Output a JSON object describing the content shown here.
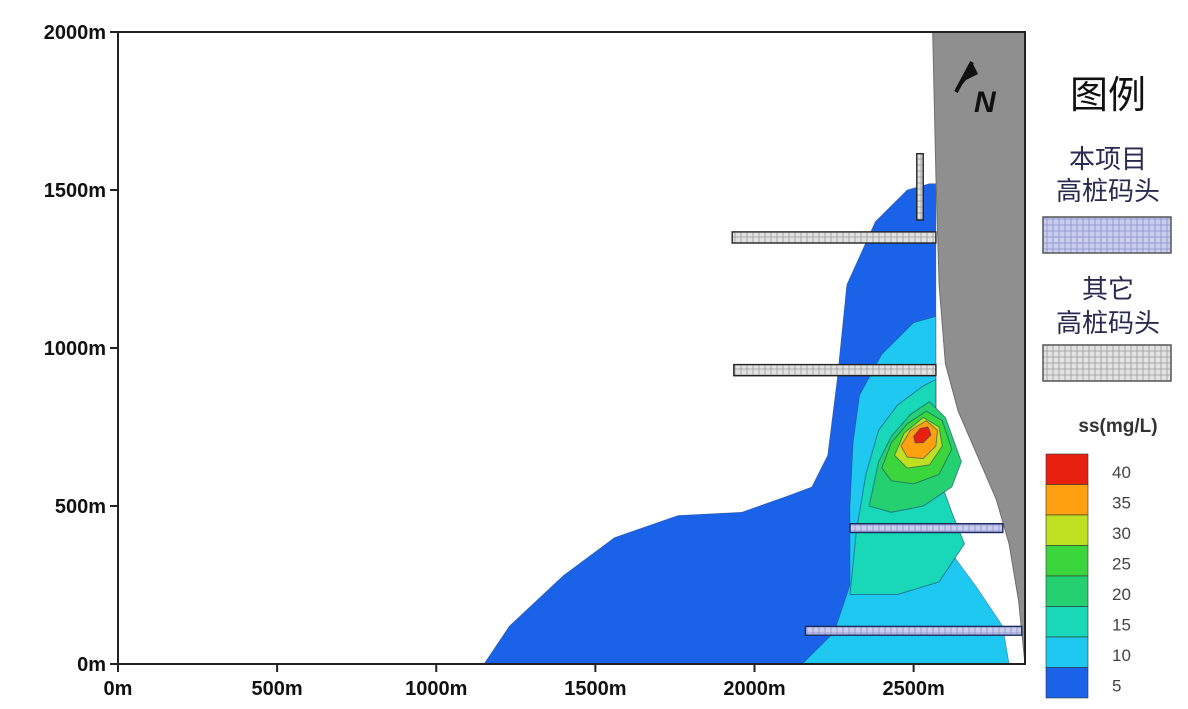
{
  "chart_data": {
    "type": "heatmap",
    "title": "",
    "xlabel": "",
    "ylabel": "",
    "xlim": [
      0,
      2850
    ],
    "ylim": [
      0,
      2000
    ],
    "x_ticks": [
      {
        "value": 0,
        "label": "0m"
      },
      {
        "value": 500,
        "label": "500m"
      },
      {
        "value": 1000,
        "label": "1000m"
      },
      {
        "value": 1500,
        "label": "1500m"
      },
      {
        "value": 2000,
        "label": "2000m"
      },
      {
        "value": 2500,
        "label": "2500m"
      }
    ],
    "y_ticks": [
      {
        "value": 0,
        "label": "0m"
      },
      {
        "value": 500,
        "label": "500m"
      },
      {
        "value": 1000,
        "label": "1000m"
      },
      {
        "value": 1500,
        "label": "1500m"
      },
      {
        "value": 2000,
        "label": "2000m"
      }
    ],
    "north_arrow": "N",
    "legend": {
      "placement": "right",
      "title": "图例",
      "items": [
        {
          "label_line1": "本项目",
          "label_line2": "高桩码头",
          "fill": "#c8cdee",
          "text_color": "#2a2a7a"
        },
        {
          "label_line1": "其它",
          "label_line2": "高桩码头",
          "fill": "#d8d8d8",
          "text_color": "#333333"
        }
      ],
      "scale_title": "ss(mg/L)",
      "scale_labels": [
        "40",
        "35",
        "30",
        "25",
        "20",
        "15",
        "10",
        "5"
      ]
    },
    "color_scale": [
      {
        "value": 5,
        "color": "#1a63e8"
      },
      {
        "value": 10,
        "color": "#1ec8f0"
      },
      {
        "value": 15,
        "color": "#18d8b8"
      },
      {
        "value": 20,
        "color": "#25d070"
      },
      {
        "value": 25,
        "color": "#3bd53c"
      },
      {
        "value": 30,
        "color": "#bfe020"
      },
      {
        "value": 35,
        "color": "#ffa010"
      },
      {
        "value": 40,
        "color": "#e82010"
      }
    ],
    "land_color": "#8f8f8f",
    "contours": [
      {
        "level": 5,
        "color": "#1a63e8",
        "points": [
          [
            1150,
            0
          ],
          [
            1230,
            120
          ],
          [
            1400,
            280
          ],
          [
            1560,
            400
          ],
          [
            1760,
            470
          ],
          [
            1960,
            480
          ],
          [
            2100,
            530
          ],
          [
            2180,
            560
          ],
          [
            2230,
            660
          ],
          [
            2260,
            900
          ],
          [
            2290,
            1200
          ],
          [
            2380,
            1400
          ],
          [
            2480,
            1500
          ],
          [
            2550,
            1520
          ],
          [
            2570,
            1520
          ],
          [
            2570,
            0
          ]
        ]
      },
      {
        "level": 10,
        "color": "#1ec8f0",
        "points": [
          [
            2150,
            0
          ],
          [
            2250,
            100
          ],
          [
            2300,
            250
          ],
          [
            2300,
            500
          ],
          [
            2310,
            700
          ],
          [
            2330,
            850
          ],
          [
            2400,
            980
          ],
          [
            2500,
            1080
          ],
          [
            2570,
            1100
          ],
          [
            2570,
            460
          ],
          [
            2620,
            350
          ],
          [
            2700,
            240
          ],
          [
            2780,
            120
          ],
          [
            2800,
            0
          ]
        ]
      },
      {
        "level": 15,
        "color": "#18d8b8",
        "points": [
          [
            2300,
            220
          ],
          [
            2320,
            420
          ],
          [
            2350,
            600
          ],
          [
            2390,
            740
          ],
          [
            2450,
            820
          ],
          [
            2530,
            880
          ],
          [
            2570,
            900
          ],
          [
            2570,
            620
          ],
          [
            2620,
            480
          ],
          [
            2660,
            380
          ],
          [
            2580,
            260
          ],
          [
            2450,
            220
          ]
        ]
      },
      {
        "level": 20,
        "color": "#25d070",
        "points": [
          [
            2360,
            500
          ],
          [
            2390,
            640
          ],
          [
            2430,
            720
          ],
          [
            2490,
            790
          ],
          [
            2550,
            830
          ],
          [
            2600,
            780
          ],
          [
            2650,
            640
          ],
          [
            2620,
            560
          ],
          [
            2530,
            500
          ],
          [
            2430,
            480
          ]
        ]
      },
      {
        "level": 25,
        "color": "#3bd53c",
        "points": [
          [
            2400,
            620
          ],
          [
            2430,
            700
          ],
          [
            2480,
            760
          ],
          [
            2540,
            800
          ],
          [
            2590,
            770
          ],
          [
            2620,
            680
          ],
          [
            2580,
            600
          ],
          [
            2500,
            570
          ],
          [
            2430,
            580
          ]
        ]
      },
      {
        "level": 30,
        "color": "#bfe020",
        "points": [
          [
            2440,
            660
          ],
          [
            2470,
            730
          ],
          [
            2530,
            780
          ],
          [
            2580,
            750
          ],
          [
            2590,
            690
          ],
          [
            2550,
            630
          ],
          [
            2480,
            620
          ]
        ]
      },
      {
        "level": 35,
        "color": "#ffa010",
        "points": [
          [
            2460,
            690
          ],
          [
            2490,
            740
          ],
          [
            2540,
            770
          ],
          [
            2575,
            740
          ],
          [
            2570,
            690
          ],
          [
            2530,
            650
          ],
          [
            2480,
            655
          ]
        ]
      },
      {
        "level": 40,
        "color": "#e82010",
        "points": [
          [
            2500,
            720
          ],
          [
            2520,
            745
          ],
          [
            2545,
            750
          ],
          [
            2555,
            725
          ],
          [
            2530,
            700
          ],
          [
            2505,
            700
          ]
        ]
      }
    ],
    "shoreline": {
      "points": [
        [
          2560,
          2000
        ],
        [
          2570,
          1550
        ],
        [
          2580,
          1200
        ],
        [
          2600,
          950
        ],
        [
          2640,
          800
        ],
        [
          2700,
          660
        ],
        [
          2760,
          520
        ],
        [
          2800,
          380
        ],
        [
          2830,
          200
        ],
        [
          2850,
          0
        ],
        [
          2850,
          2000
        ]
      ]
    },
    "piers": [
      {
        "type": "other",
        "x0": 1930,
        "x1": 2570,
        "y": 1350,
        "height": 35
      },
      {
        "type": "other",
        "x0": 1935,
        "x1": 2570,
        "y": 930,
        "height": 35
      },
      {
        "type": "other",
        "x0": 2510,
        "x1": 2530,
        "y": 1510,
        "height": 210
      },
      {
        "type": "project",
        "x0": 2160,
        "x1": 2840,
        "y": 105,
        "height": 28
      },
      {
        "type": "project",
        "x0": 2300,
        "x1": 2780,
        "y": 430,
        "height": 28
      }
    ]
  }
}
